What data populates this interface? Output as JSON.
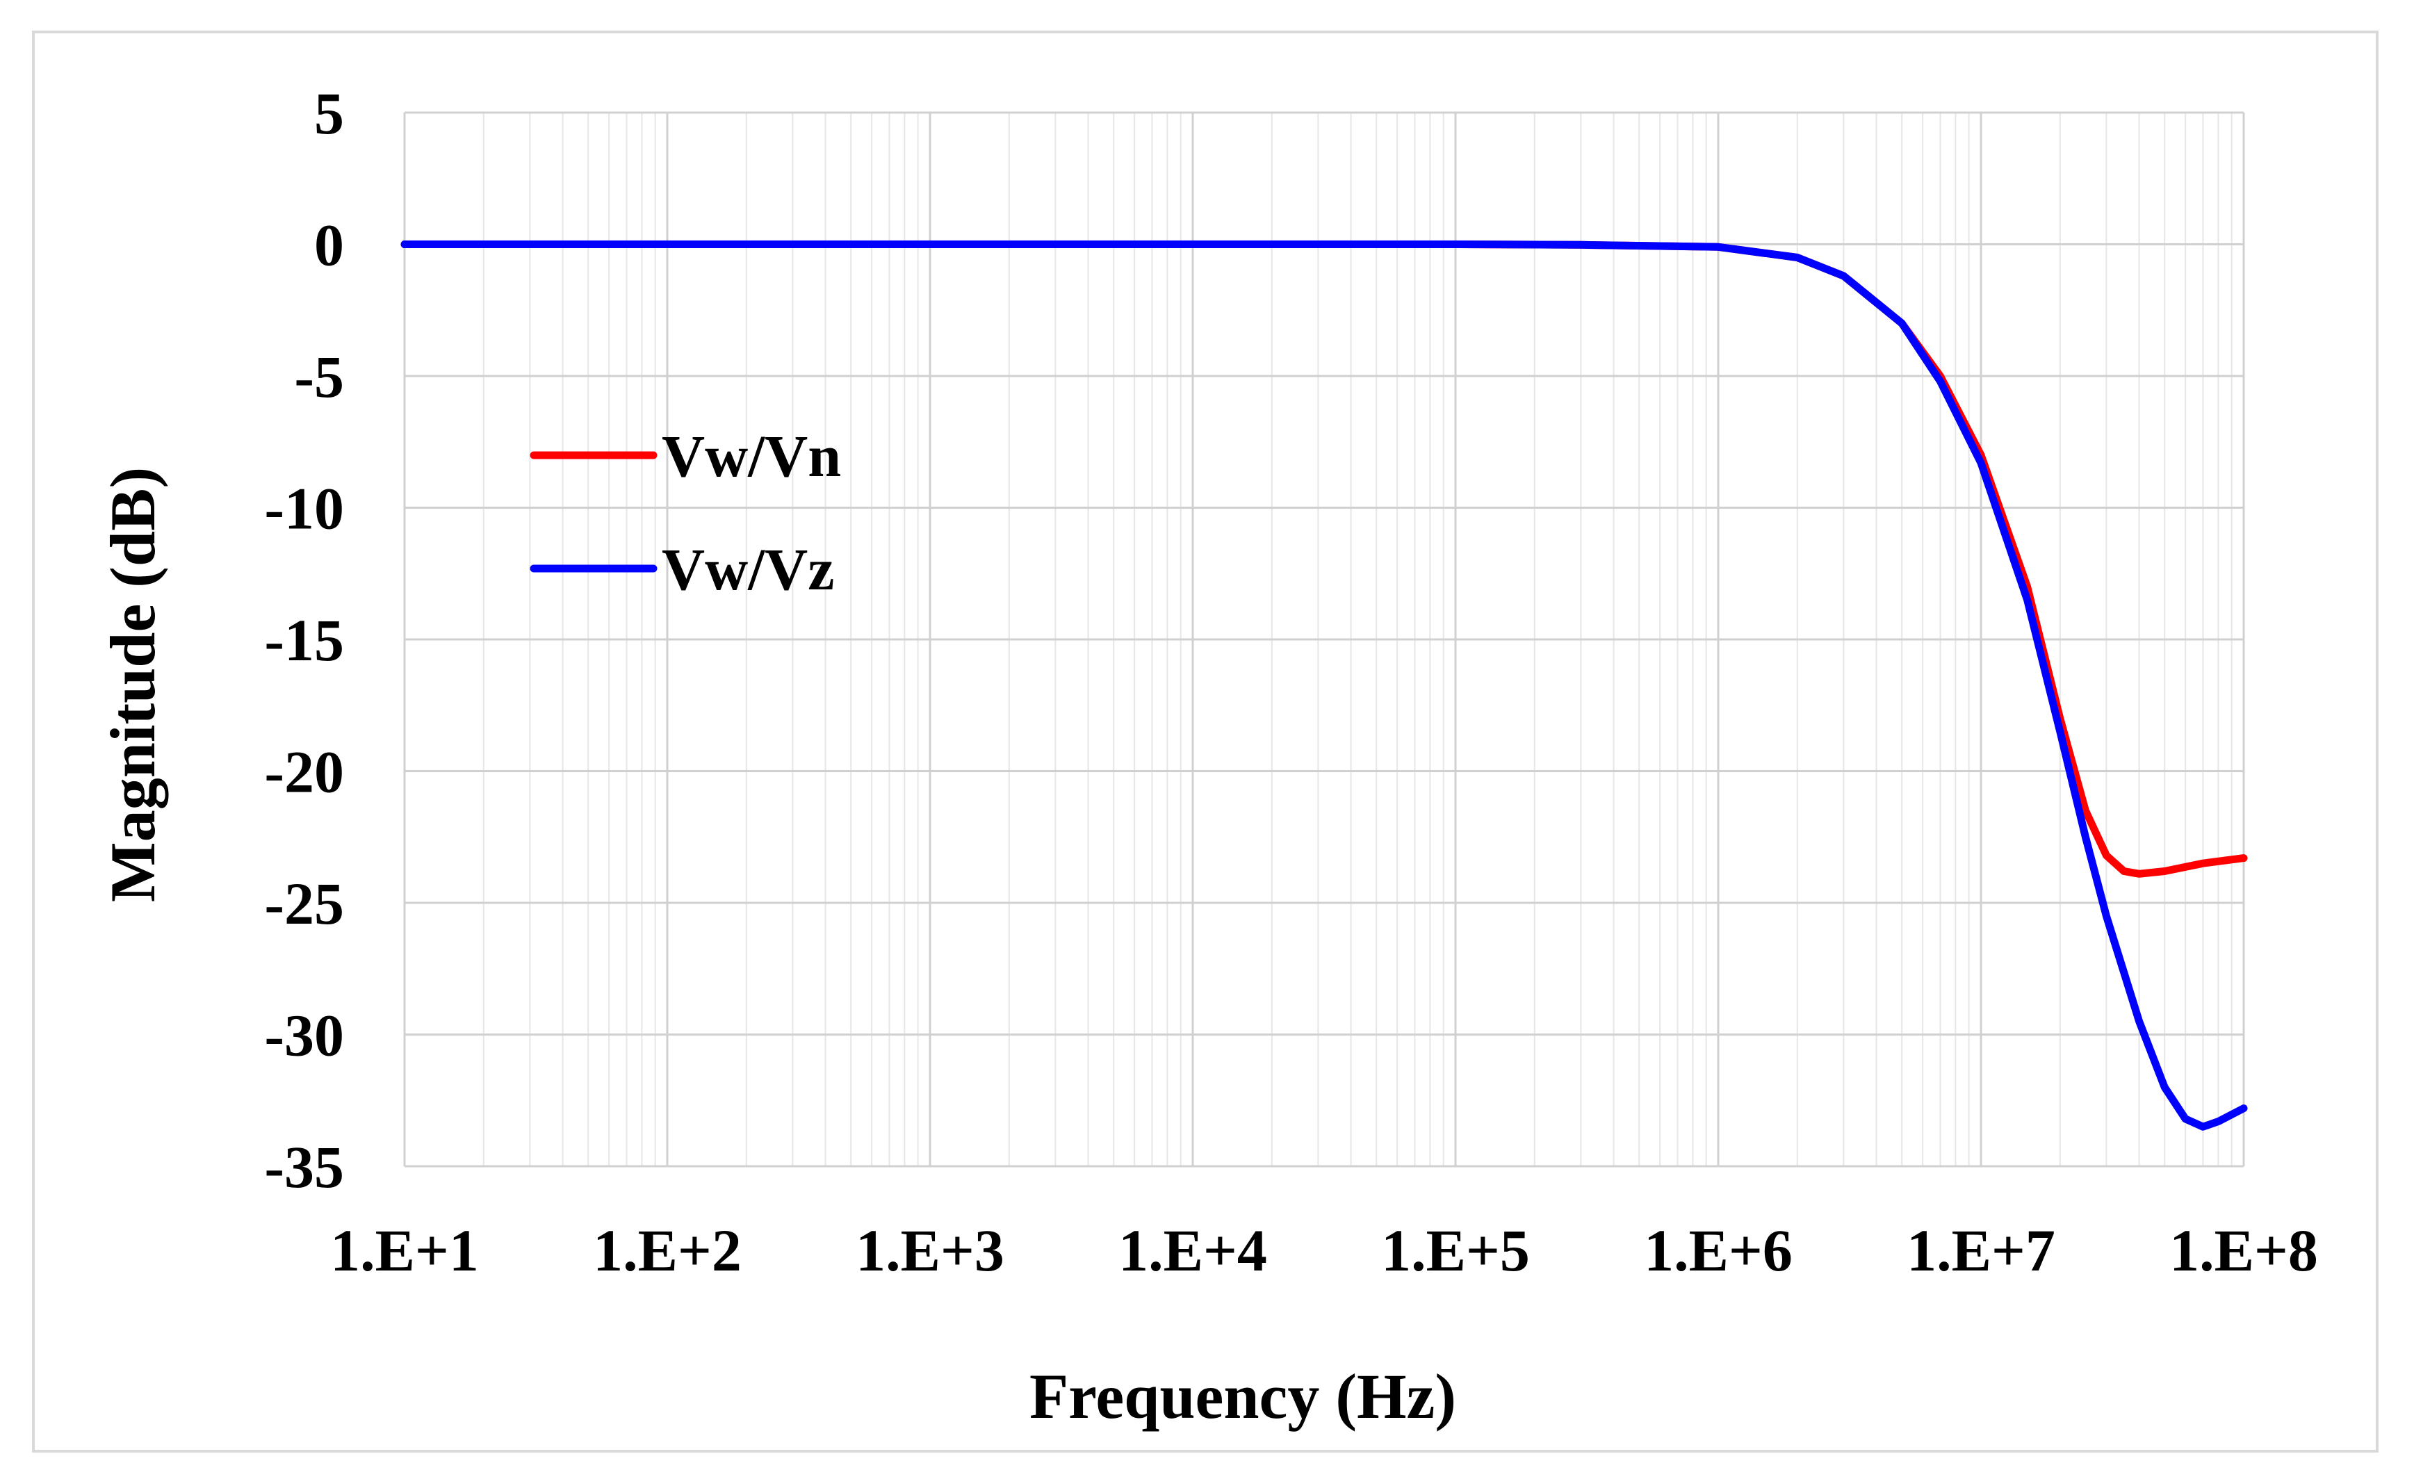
{
  "chart_data": {
    "type": "line",
    "xlabel": "Frequency (Hz)",
    "ylabel": "Magnitude (dB)",
    "x_scale": "log",
    "xlim": [
      10,
      100000000
    ],
    "ylim": [
      -35,
      5
    ],
    "x_ticks": [
      "1.E+1",
      "1.E+2",
      "1.E+3",
      "1.E+4",
      "1.E+5",
      "1.E+6",
      "1.E+7",
      "1.E+8"
    ],
    "y_ticks": [
      "5",
      "0",
      "-5",
      "-10",
      "-15",
      "-20",
      "-25",
      "-30",
      "-35"
    ],
    "grid": true,
    "legend_position": "left",
    "series": [
      {
        "name": "Vw/Vn",
        "color": "#ff0000",
        "points": [
          [
            10,
            0
          ],
          [
            100,
            0
          ],
          [
            1000,
            0
          ],
          [
            10000,
            0
          ],
          [
            100000,
            0
          ],
          [
            300000,
            -0.02
          ],
          [
            1000000,
            -0.1
          ],
          [
            2000000,
            -0.5
          ],
          [
            3000000,
            -1.2
          ],
          [
            5000000,
            -3
          ],
          [
            7000000,
            -5
          ],
          [
            10000000,
            -8
          ],
          [
            15000000,
            -13
          ],
          [
            20000000,
            -18
          ],
          [
            25000000,
            -21.5
          ],
          [
            30000000,
            -23.2
          ],
          [
            35000000,
            -23.8
          ],
          [
            40000000,
            -23.9
          ],
          [
            50000000,
            -23.8
          ],
          [
            70000000,
            -23.5
          ],
          [
            100000000,
            -23.3
          ]
        ]
      },
      {
        "name": "Vw/Vz",
        "color": "#0000ff",
        "points": [
          [
            10,
            0
          ],
          [
            100,
            0
          ],
          [
            1000,
            0
          ],
          [
            10000,
            0
          ],
          [
            100000,
            0
          ],
          [
            300000,
            -0.02
          ],
          [
            1000000,
            -0.1
          ],
          [
            2000000,
            -0.5
          ],
          [
            3000000,
            -1.2
          ],
          [
            5000000,
            -3
          ],
          [
            7000000,
            -5.2
          ],
          [
            10000000,
            -8.3
          ],
          [
            15000000,
            -13.5
          ],
          [
            20000000,
            -18.5
          ],
          [
            25000000,
            -22.5
          ],
          [
            30000000,
            -25.5
          ],
          [
            40000000,
            -29.5
          ],
          [
            50000000,
            -32
          ],
          [
            60000000,
            -33.2
          ],
          [
            70000000,
            -33.5
          ],
          [
            80000000,
            -33.3
          ],
          [
            100000000,
            -32.8
          ]
        ]
      }
    ]
  }
}
